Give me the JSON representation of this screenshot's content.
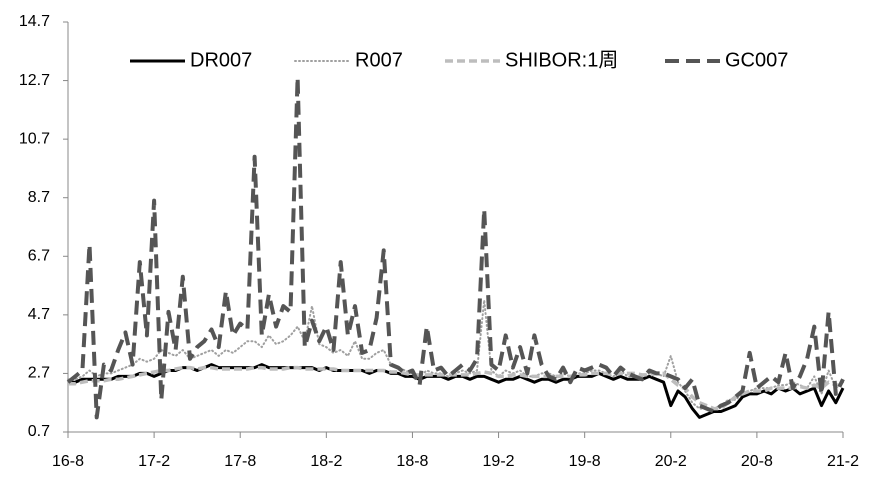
{
  "chart_data": {
    "type": "line",
    "categories": [
      "16-8",
      null,
      null,
      null,
      null,
      null,
      null,
      null,
      null,
      null,
      null,
      null,
      "17-2",
      null,
      null,
      null,
      null,
      null,
      null,
      null,
      null,
      null,
      null,
      null,
      "17-8",
      null,
      null,
      null,
      null,
      null,
      null,
      null,
      null,
      null,
      null,
      null,
      "18-2",
      null,
      null,
      null,
      null,
      null,
      null,
      null,
      null,
      null,
      null,
      null,
      "18-8",
      null,
      null,
      null,
      null,
      null,
      null,
      null,
      null,
      null,
      null,
      null,
      "19-2",
      null,
      null,
      null,
      null,
      null,
      null,
      null,
      null,
      null,
      null,
      null,
      "19-8",
      null,
      null,
      null,
      null,
      null,
      null,
      null,
      null,
      null,
      null,
      null,
      "20-2",
      null,
      null,
      null,
      null,
      null,
      null,
      null,
      null,
      null,
      null,
      null,
      "20-8",
      null,
      null,
      null,
      null,
      null,
      null,
      null,
      null,
      null,
      null,
      null,
      "21-2"
    ],
    "series": [
      {
        "name": "DR007",
        "color": "#000000",
        "style": "solid",
        "values": [
          2.4,
          2.4,
          2.5,
          2.5,
          2.5,
          2.5,
          2.5,
          2.6,
          2.6,
          2.6,
          2.7,
          2.7,
          2.6,
          2.7,
          2.8,
          2.8,
          2.9,
          2.9,
          2.8,
          2.9,
          3.0,
          2.9,
          2.9,
          2.9,
          2.9,
          2.9,
          2.9,
          3.0,
          2.9,
          2.9,
          2.9,
          2.9,
          2.9,
          2.9,
          2.9,
          2.8,
          2.9,
          2.8,
          2.8,
          2.8,
          2.8,
          2.8,
          2.7,
          2.8,
          2.8,
          2.7,
          2.7,
          2.6,
          2.6,
          2.5,
          2.6,
          2.6,
          2.6,
          2.5,
          2.6,
          2.6,
          2.5,
          2.6,
          2.6,
          2.5,
          2.4,
          2.5,
          2.5,
          2.6,
          2.5,
          2.4,
          2.5,
          2.5,
          2.4,
          2.5,
          2.5,
          2.6,
          2.6,
          2.6,
          2.7,
          2.6,
          2.5,
          2.6,
          2.5,
          2.5,
          2.5,
          2.6,
          2.5,
          2.4,
          1.6,
          2.1,
          1.9,
          1.5,
          1.2,
          1.3,
          1.4,
          1.4,
          1.5,
          1.6,
          1.9,
          2.0,
          2.0,
          2.1,
          2.0,
          2.2,
          2.1,
          2.2,
          2.0,
          2.1,
          2.2,
          1.6,
          2.1,
          1.7,
          2.2
        ]
      },
      {
        "name": "R007",
        "color": "#a0a0a0",
        "style": "dotted",
        "values": [
          2.5,
          2.5,
          2.6,
          2.8,
          2.6,
          2.7,
          2.7,
          2.8,
          2.9,
          3.0,
          3.2,
          3.1,
          3.2,
          3.5,
          3.4,
          3.3,
          3.5,
          3.2,
          3.3,
          3.4,
          3.5,
          3.3,
          3.5,
          3.4,
          3.6,
          3.8,
          3.8,
          3.6,
          4.0,
          3.7,
          3.8,
          4.0,
          4.3,
          3.8,
          5.0,
          3.7,
          3.6,
          3.4,
          3.5,
          3.3,
          3.8,
          3.2,
          3.2,
          3.4,
          3.5,
          3.0,
          2.9,
          2.8,
          2.7,
          2.6,
          2.8,
          2.7,
          2.7,
          2.6,
          2.7,
          2.8,
          2.7,
          2.8,
          5.2,
          2.8,
          2.6,
          2.8,
          2.7,
          2.8,
          2.6,
          2.6,
          2.7,
          2.7,
          2.6,
          2.7,
          2.6,
          2.7,
          2.7,
          2.8,
          2.8,
          2.7,
          2.6,
          2.8,
          2.6,
          2.6,
          2.6,
          2.7,
          2.7,
          2.6,
          3.3,
          2.4,
          2.1,
          1.7,
          1.5,
          1.5,
          1.5,
          1.6,
          1.8,
          1.8,
          2.0,
          2.1,
          2.2,
          2.2,
          2.2,
          2.3,
          2.3,
          2.4,
          2.3,
          2.2,
          2.6,
          2.0,
          2.8,
          2.2,
          2.4
        ]
      },
      {
        "name": "SHIBOR:1周",
        "color": "#bdbdbd",
        "style": "dashed",
        "values": [
          2.35,
          2.35,
          2.4,
          2.45,
          2.45,
          2.45,
          2.5,
          2.5,
          2.55,
          2.6,
          2.65,
          2.7,
          2.75,
          2.8,
          2.8,
          2.85,
          2.9,
          2.9,
          2.85,
          2.9,
          2.9,
          2.85,
          2.85,
          2.85,
          2.85,
          2.85,
          2.9,
          2.9,
          2.85,
          2.85,
          2.85,
          2.9,
          2.9,
          2.85,
          2.85,
          2.85,
          2.85,
          2.85,
          2.8,
          2.8,
          2.8,
          2.8,
          2.8,
          2.8,
          2.8,
          2.75,
          2.75,
          2.7,
          2.65,
          2.65,
          2.65,
          2.65,
          2.65,
          2.65,
          2.65,
          2.65,
          2.65,
          2.7,
          2.75,
          2.7,
          2.6,
          2.6,
          2.65,
          2.65,
          2.6,
          2.6,
          2.6,
          2.6,
          2.6,
          2.6,
          2.6,
          2.65,
          2.65,
          2.7,
          2.7,
          2.7,
          2.65,
          2.7,
          2.7,
          2.7,
          2.65,
          2.65,
          2.7,
          2.7,
          2.5,
          2.3,
          2.2,
          1.9,
          1.7,
          1.6,
          1.5,
          1.5,
          1.7,
          1.9,
          2.0,
          2.1,
          2.1,
          2.1,
          2.2,
          2.2,
          2.2,
          2.2,
          2.25,
          2.2,
          2.3,
          2.2,
          2.4,
          2.3,
          2.3
        ]
      },
      {
        "name": "GC007",
        "color": "#555555",
        "style": "long-dashed",
        "values": [
          2.4,
          2.6,
          2.8,
          7.1,
          1.2,
          3.0,
          2.8,
          3.5,
          4.1,
          3.0,
          6.5,
          4.0,
          8.6,
          1.8,
          4.8,
          3.5,
          6.0,
          3.2,
          3.6,
          3.8,
          4.2,
          3.6,
          5.5,
          4.0,
          4.4,
          4.2,
          10.1,
          4.0,
          5.4,
          4.3,
          5.0,
          4.8,
          12.8,
          3.6,
          4.5,
          3.8,
          4.3,
          3.5,
          6.5,
          4.0,
          5.0,
          3.4,
          3.5,
          4.6,
          6.9,
          3.0,
          2.9,
          2.7,
          2.8,
          2.3,
          4.3,
          2.8,
          2.9,
          2.6,
          2.8,
          3.0,
          2.8,
          3.2,
          8.3,
          3.0,
          2.8,
          4.0,
          2.9,
          3.6,
          2.7,
          4.0,
          3.0,
          2.6,
          2.5,
          2.9,
          2.4,
          2.9,
          2.8,
          2.9,
          3.0,
          2.9,
          2.6,
          2.9,
          2.7,
          2.6,
          2.5,
          2.8,
          2.7,
          2.7,
          2.6,
          2.5,
          2.2,
          2.5,
          1.6,
          1.5,
          1.4,
          1.6,
          1.7,
          1.9,
          2.1,
          3.4,
          2.2,
          2.4,
          2.6,
          2.4,
          3.4,
          2.2,
          2.6,
          3.2,
          4.3,
          2.0,
          4.8,
          2.0,
          2.5
        ]
      }
    ],
    "ylim": [
      0.7,
      14.7
    ],
    "yticks": [
      0.7,
      2.7,
      4.7,
      6.7,
      8.7,
      10.7,
      12.7,
      14.7
    ],
    "grid": false,
    "legend": "top"
  }
}
